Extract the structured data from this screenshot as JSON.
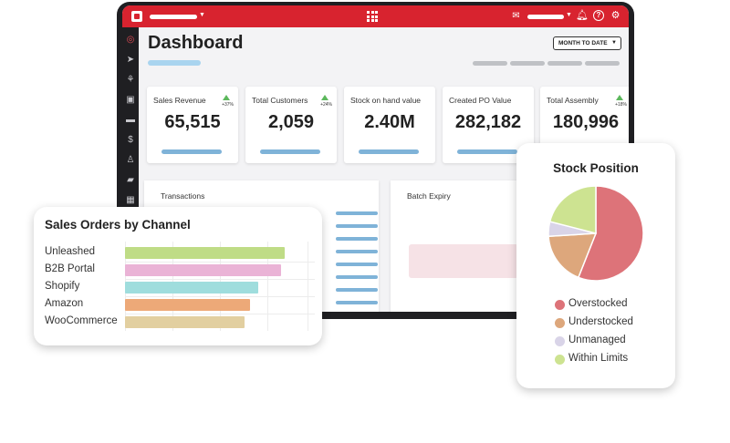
{
  "dashboard": {
    "title": "Dashboard",
    "date_filter": "MONTH TO DATE",
    "kpis": [
      {
        "label": "Sales Revenue",
        "value": "65,515",
        "change": "+37%"
      },
      {
        "label": "Total Customers",
        "value": "2,059",
        "change": "+24%"
      },
      {
        "label": "Stock on hand value",
        "value": "2.40M",
        "change": ""
      },
      {
        "label": "Created PO Value",
        "value": "282,182",
        "change": ""
      },
      {
        "label": "Total Assembly",
        "value": "180,996",
        "change": "+18%"
      }
    ],
    "panels": {
      "transactions": "Transactions",
      "batch_expiry": "Batch Expiry"
    }
  },
  "sales_orders": {
    "title": "Sales Orders by Channel",
    "channels": [
      {
        "label": "Unleashed",
        "color": "#bfdc86",
        "fraction": 0.84
      },
      {
        "label": "B2B Portal",
        "color": "#eab3d6",
        "fraction": 0.82
      },
      {
        "label": "Shopify",
        "color": "#9fdddd",
        "fraction": 0.7
      },
      {
        "label": "Amazon",
        "color": "#eda978",
        "fraction": 0.66
      },
      {
        "label": "WooCommerce",
        "color": "#e2cfa0",
        "fraction": 0.63
      }
    ]
  },
  "stock_position": {
    "title": "Stock Position",
    "segments": [
      {
        "label": "Overstocked",
        "color": "#dd7379",
        "share": 0.56
      },
      {
        "label": "Understocked",
        "color": "#dda77c",
        "share": 0.18
      },
      {
        "label": "Unmanaged",
        "color": "#d9d4e8",
        "share": 0.05
      },
      {
        "label": "Within Limits",
        "color": "#cde391",
        "share": 0.21
      }
    ]
  },
  "icons": [
    "logo-icon",
    "apps-grid-icon",
    "mail-icon",
    "bell-icon",
    "help-icon",
    "settings-icon"
  ]
}
